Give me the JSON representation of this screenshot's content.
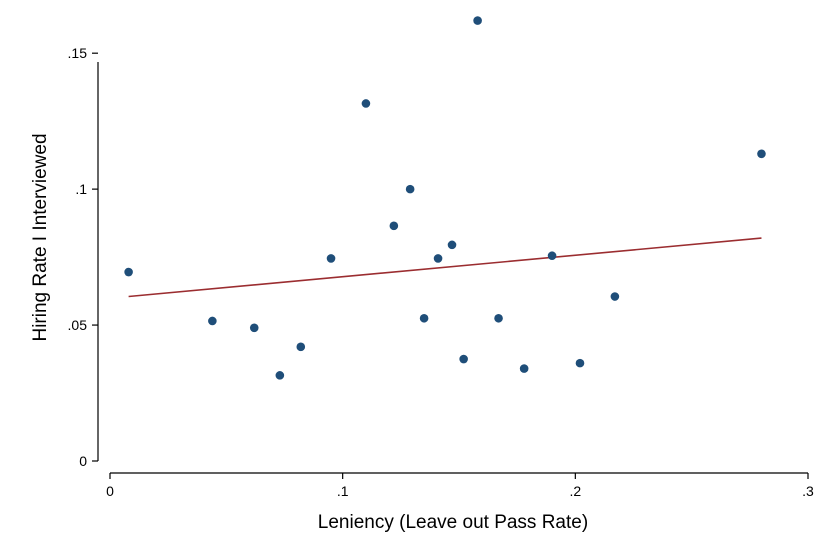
{
  "chart_data": {
    "type": "scatter",
    "title": "",
    "xlabel": "Leniency (Leave out Pass Rate)",
    "ylabel": "Hiring Rate I Interviewed",
    "xlim": [
      0,
      0.3
    ],
    "ylim": [
      0,
      0.16
    ],
    "xticks": [
      {
        "value": 0,
        "label": "0"
      },
      {
        "value": 0.1,
        "label": ".1"
      },
      {
        "value": 0.2,
        "label": ".2"
      },
      {
        "value": 0.3,
        "label": ".3"
      }
    ],
    "yticks": [
      {
        "value": 0,
        "label": "0"
      },
      {
        "value": 0.05,
        "label": ".05"
      },
      {
        "value": 0.1,
        "label": ".1"
      },
      {
        "value": 0.15,
        "label": ".15"
      }
    ],
    "grid": false,
    "legend": "none",
    "colors": {
      "points": "#1f4e79",
      "fit_line": "#9b2d30",
      "axis": "#000000"
    },
    "points": [
      {
        "x": 0.008,
        "y": 0.0695
      },
      {
        "x": 0.044,
        "y": 0.0515
      },
      {
        "x": 0.062,
        "y": 0.049
      },
      {
        "x": 0.073,
        "y": 0.0315
      },
      {
        "x": 0.082,
        "y": 0.042
      },
      {
        "x": 0.095,
        "y": 0.0745
      },
      {
        "x": 0.11,
        "y": 0.1315
      },
      {
        "x": 0.122,
        "y": 0.0865
      },
      {
        "x": 0.129,
        "y": 0.1
      },
      {
        "x": 0.135,
        "y": 0.0525
      },
      {
        "x": 0.141,
        "y": 0.0745
      },
      {
        "x": 0.147,
        "y": 0.0795
      },
      {
        "x": 0.152,
        "y": 0.0375
      },
      {
        "x": 0.158,
        "y": 0.162
      },
      {
        "x": 0.167,
        "y": 0.0525
      },
      {
        "x": 0.178,
        "y": 0.034
      },
      {
        "x": 0.19,
        "y": 0.0755
      },
      {
        "x": 0.202,
        "y": 0.036
      },
      {
        "x": 0.217,
        "y": 0.0605
      },
      {
        "x": 0.28,
        "y": 0.113
      }
    ],
    "fit_line": {
      "x": [
        0.008,
        0.28
      ],
      "y": [
        0.0605,
        0.082
      ]
    }
  }
}
